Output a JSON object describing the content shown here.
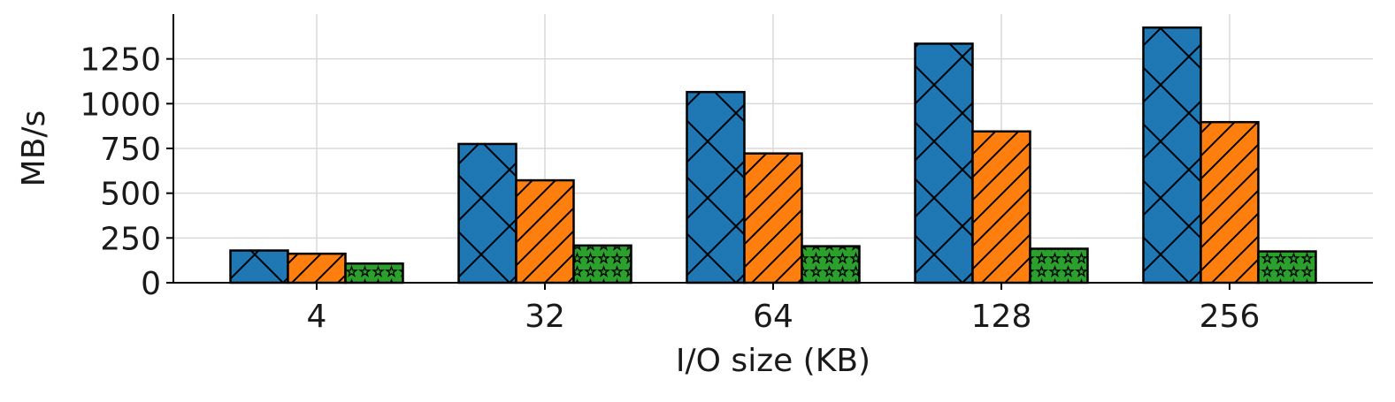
{
  "chart_data": {
    "type": "bar",
    "title": "",
    "xlabel": "I/O size (KB)",
    "ylabel": "MB/s",
    "categories": [
      "4",
      "32",
      "64",
      "128",
      "256"
    ],
    "ylim": [
      0,
      1500
    ],
    "yticks": [
      0,
      250,
      500,
      750,
      1000,
      1250
    ],
    "grid": true,
    "legend": "none",
    "series": [
      {
        "values": [
          180,
          775,
          1065,
          1335,
          1425
        ],
        "color": "#1f77b4",
        "hatch": "crosshatch-x"
      },
      {
        "values": [
          162,
          572,
          722,
          845,
          897
        ],
        "color": "#ff7f0e",
        "hatch": "diagonal"
      },
      {
        "values": [
          107,
          208,
          204,
          190,
          175
        ],
        "color": "#2ca02c",
        "hatch": "stars"
      }
    ]
  }
}
